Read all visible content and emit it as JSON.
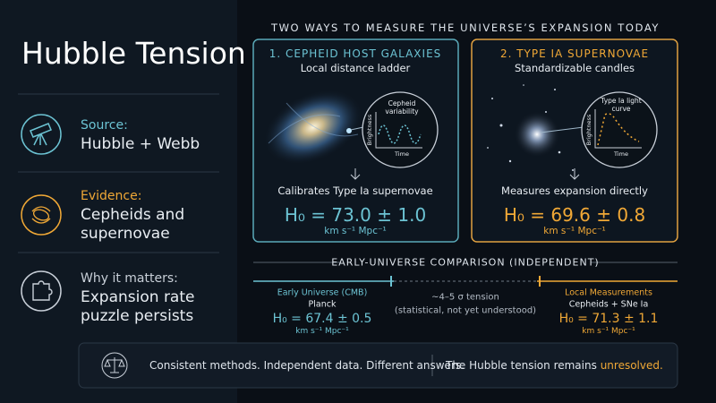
{
  "title": "Hubble Tension",
  "sidebar": [
    {
      "label": "Source:",
      "text": "Hubble + Webb"
    },
    {
      "label": "Evidence:",
      "text": "Cepheids and supernovae"
    },
    {
      "label": "Why it matters:",
      "text": "Expansion rate puzzle persists"
    }
  ],
  "header": "TWO WAYS TO MEASURE THE UNIVERSE’S EXPANSION TODAY",
  "cards": [
    {
      "title": "1. CEPHEID HOST GALAXIES",
      "subtitle": "Local distance ladder",
      "inset_title": "Cepheid variability",
      "inset_y": "Brightness",
      "inset_x": "Time",
      "caption": "Calibrates Type Ia supernovae",
      "value": "H₀ = 73.0 ± 1.0",
      "units": "km s⁻¹ Mpc⁻¹"
    },
    {
      "title": "2. TYPE IA SUPERNOVAE",
      "subtitle": "Standardizable candles",
      "inset_title": "Type Ia light curve",
      "inset_y": "Brightness",
      "inset_x": "Time",
      "caption": "Measures expansion directly",
      "value": "H₀ = 69.6 ± 0.8",
      "units": "km s⁻¹ Mpc⁻¹"
    }
  ],
  "comparison": {
    "title": "EARLY-UNIVERSE COMPARISON (INDEPENDENT)",
    "early": {
      "label": "Early Universe (CMB)",
      "source": "Planck",
      "value": "H₀ = 67.4 ± 0.5",
      "units": "km s⁻¹ Mpc⁻¹"
    },
    "tension": {
      "label": "~4–5 σ tension",
      "note": "(statistical, not yet understood)"
    },
    "local": {
      "label": "Local Measurements",
      "source": "Cepheids + SNe Ia",
      "value": "H₀ = 71.3 ± 1.1",
      "units": "km s⁻¹ Mpc⁻¹"
    }
  },
  "footer": {
    "left": "Consistent methods. Independent data. Different answers.",
    "right": "The Hubble tension remains",
    "highlight": "unresolved."
  }
}
